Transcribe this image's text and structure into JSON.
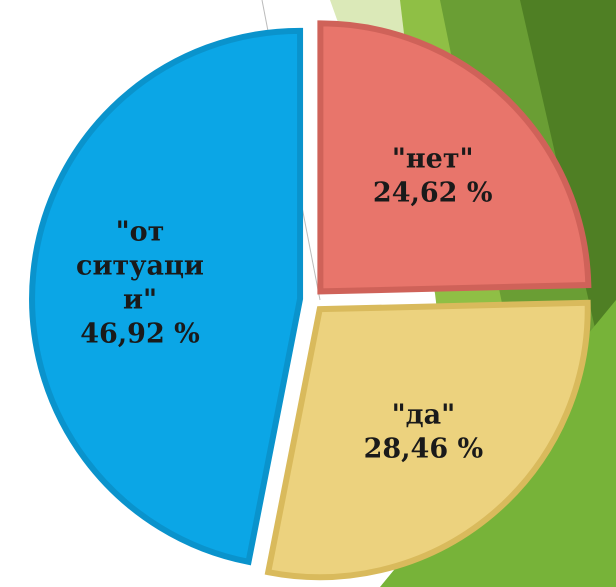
{
  "chart_data": {
    "type": "pie",
    "categories": [
      "\"нет\"",
      "\"да\"",
      "\"от ситуации\""
    ],
    "values": [
      24.62,
      28.46,
      46.92
    ],
    "value_labels": [
      "24,62 %",
      "28,46 %",
      "46,92 %"
    ],
    "colors": [
      "#e8756b",
      "#ecd27e",
      "#0ba6e6"
    ],
    "stroke_colors": [
      "#cf6259",
      "#d9ba5c",
      "#0a93cc"
    ]
  }
}
